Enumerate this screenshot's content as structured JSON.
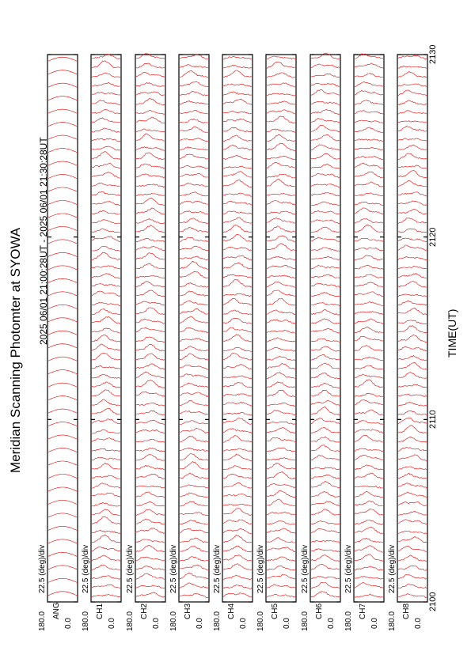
{
  "chart_data": {
    "type": "line",
    "title": "Meridian Scanning Photomter at SYOWA",
    "subtitle": "2025 06/01 21:00:28UT - 2025 06/01 21:30:28UT",
    "xlabel": "TIME(UT)",
    "x_ticks": [
      "2100",
      "2110",
      "2120",
      "2130"
    ],
    "x_range": [
      "2100",
      "2130"
    ],
    "scale_label": "22.5 (deg)/div",
    "y_range": [
      0.0,
      180.0
    ],
    "y_tick_labels": [
      "180.0",
      "0.0"
    ],
    "panels": [
      {
        "label": "ANG",
        "kind": "angle"
      },
      {
        "label": "CH1",
        "kind": "intensity"
      },
      {
        "label": "CH2",
        "kind": "intensity"
      },
      {
        "label": "CH3",
        "kind": "intensity"
      },
      {
        "label": "CH4",
        "kind": "intensity"
      },
      {
        "label": "CH5",
        "kind": "intensity"
      },
      {
        "label": "CH6",
        "kind": "intensity"
      },
      {
        "label": "CH7",
        "kind": "intensity"
      },
      {
        "label": "CH8",
        "kind": "intensity"
      }
    ],
    "line_color": "#e00000",
    "grid": false
  }
}
